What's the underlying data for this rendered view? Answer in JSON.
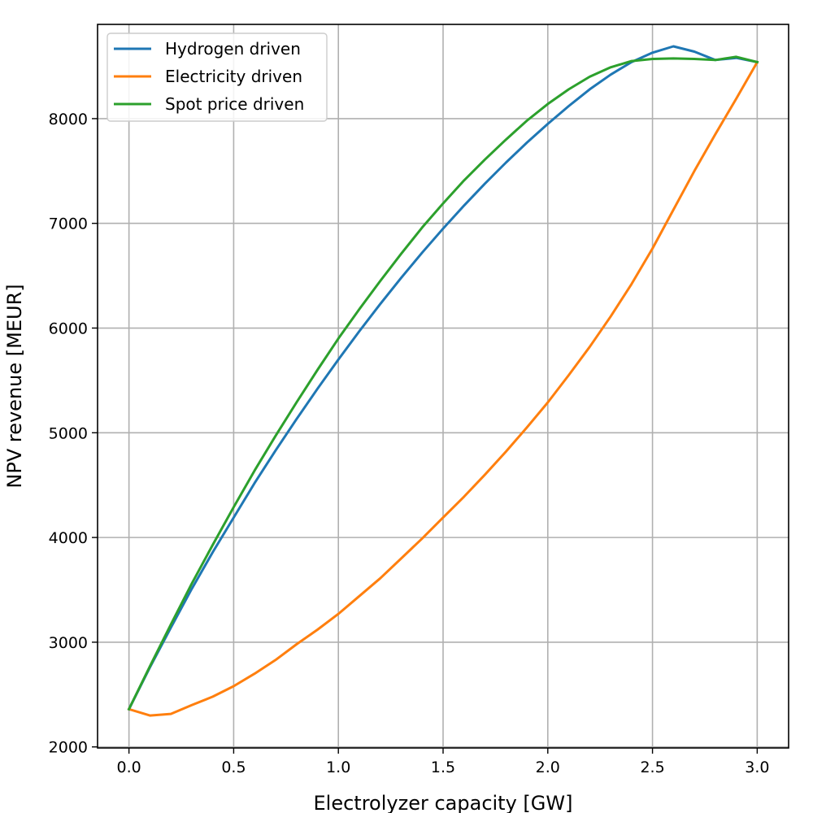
{
  "chart_data": {
    "type": "line",
    "title": "",
    "xlabel": "Electrolyzer capacity [GW]",
    "ylabel": "NPV revenue [MEUR]",
    "xlim": [
      -0.15,
      3.15
    ],
    "ylim": [
      1990,
      8900
    ],
    "x_ticks": [
      0.0,
      0.5,
      1.0,
      1.5,
      2.0,
      2.5,
      3.0
    ],
    "x_tick_labels": [
      "0.0",
      "0.5",
      "1.0",
      "1.5",
      "2.0",
      "2.5",
      "3.0"
    ],
    "y_ticks": [
      2000,
      3000,
      4000,
      5000,
      6000,
      7000,
      8000
    ],
    "y_tick_labels": [
      "2000",
      "3000",
      "4000",
      "5000",
      "6000",
      "7000",
      "8000"
    ],
    "grid": true,
    "legend_position": "top-left",
    "series": [
      {
        "name": "Hydrogen driven",
        "color": "#1f77b4",
        "x": [
          0.0,
          0.1,
          0.2,
          0.3,
          0.4,
          0.5,
          0.6,
          0.7,
          0.8,
          0.9,
          1.0,
          1.1,
          1.2,
          1.3,
          1.4,
          1.5,
          1.6,
          1.7,
          1.8,
          1.9,
          2.0,
          2.1,
          2.2,
          2.3,
          2.4,
          2.5,
          2.6,
          2.7,
          2.8,
          2.9,
          3.0
        ],
        "y": [
          2360,
          2760,
          3140,
          3510,
          3860,
          4190,
          4520,
          4830,
          5130,
          5420,
          5700,
          5970,
          6230,
          6480,
          6720,
          6950,
          7170,
          7380,
          7580,
          7770,
          7950,
          8120,
          8280,
          8420,
          8540,
          8630,
          8690,
          8640,
          8560,
          8580,
          8540
        ]
      },
      {
        "name": "Electricity driven",
        "color": "#ff7f0e",
        "x": [
          0.0,
          0.1,
          0.2,
          0.3,
          0.4,
          0.5,
          0.6,
          0.7,
          0.8,
          0.9,
          1.0,
          1.1,
          1.2,
          1.3,
          1.4,
          1.5,
          1.6,
          1.7,
          1.8,
          1.9,
          2.0,
          2.1,
          2.2,
          2.3,
          2.4,
          2.5,
          2.6,
          2.7,
          2.8,
          2.9,
          3.0
        ],
        "y": [
          2360,
          2300,
          2315,
          2400,
          2480,
          2580,
          2700,
          2830,
          2980,
          3120,
          3270,
          3440,
          3610,
          3800,
          3990,
          4190,
          4390,
          4600,
          4820,
          5050,
          5290,
          5550,
          5820,
          6110,
          6420,
          6760,
          7130,
          7500,
          7850,
          8190,
          8540
        ]
      },
      {
        "name": "Spot price driven",
        "color": "#2ca02c",
        "x": [
          0.0,
          0.1,
          0.2,
          0.3,
          0.4,
          0.5,
          0.6,
          0.7,
          0.8,
          0.9,
          1.0,
          1.1,
          1.2,
          1.3,
          1.4,
          1.5,
          1.6,
          1.7,
          1.8,
          1.9,
          2.0,
          2.1,
          2.2,
          2.3,
          2.4,
          2.5,
          2.6,
          2.7,
          2.8,
          2.9,
          3.0
        ],
        "y": [
          2360,
          2770,
          3170,
          3560,
          3930,
          4290,
          4640,
          4970,
          5290,
          5600,
          5900,
          6180,
          6450,
          6710,
          6960,
          7190,
          7410,
          7610,
          7800,
          7980,
          8140,
          8280,
          8400,
          8490,
          8550,
          8570,
          8575,
          8570,
          8560,
          8590,
          8540
        ]
      }
    ]
  }
}
